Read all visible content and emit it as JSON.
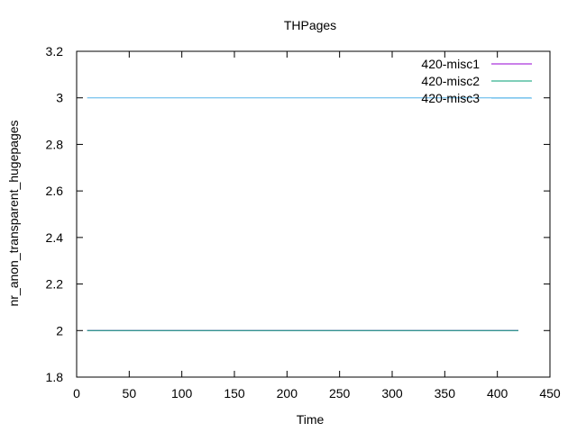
{
  "chart_data": {
    "type": "line",
    "title": "THPages",
    "xlabel": "Time",
    "ylabel": "nr_anon_transparent_hugepages",
    "xlim": [
      0,
      450
    ],
    "ylim": [
      1.8,
      3.2
    ],
    "xticks": [
      0,
      50,
      100,
      150,
      200,
      250,
      300,
      350,
      400,
      450
    ],
    "yticks": [
      1.8,
      2,
      2.2,
      2.4,
      2.6,
      2.8,
      3,
      3.2
    ],
    "ytick_labels": [
      "1.8",
      "2",
      "2.2",
      "2.4",
      "2.6",
      "2.8",
      "3",
      "3.2"
    ],
    "grid": false,
    "legend_position": "top-right",
    "series": [
      {
        "name": "420-misc1",
        "color": "#9400d3",
        "x": [
          10,
          420
        ],
        "y": [
          2,
          2
        ]
      },
      {
        "name": "420-misc2",
        "color": "#009e73",
        "x": [
          10,
          420
        ],
        "y": [
          2,
          2
        ]
      },
      {
        "name": "420-misc3",
        "color": "#56b4e9",
        "x": [
          10,
          432
        ],
        "y": [
          3,
          3
        ]
      }
    ]
  }
}
